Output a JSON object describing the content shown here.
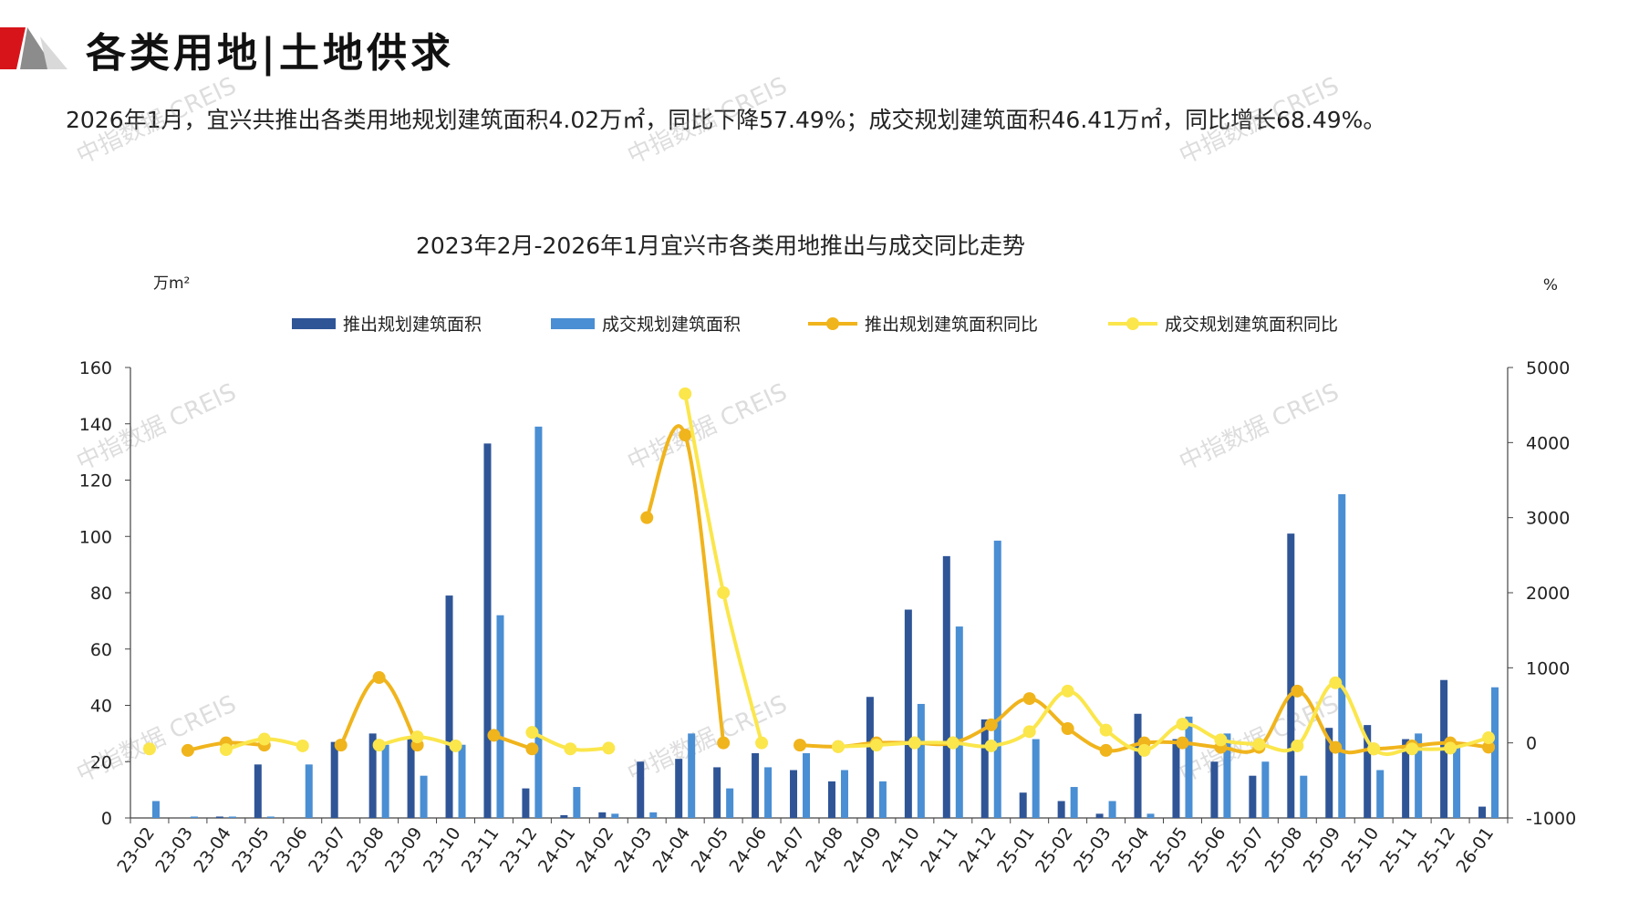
{
  "header": {
    "title": "各类用地|土地供求",
    "brand_color": "#d7141a"
  },
  "summary": "2026年1月，宜兴共推出各类用地规划建筑面积4.02万㎡，同比下降57.49%；成交规划建筑面积46.41万㎡，同比增长68.49%。",
  "watermark_text": "中指数据 CREIS",
  "chart_data": {
    "type": "bar",
    "title": "2023年2月-2026年1月宜兴市各类用地推出与成交同比走势",
    "y_left_unit": "万m²",
    "y_right_unit": "%",
    "ylim_left": [
      0,
      160
    ],
    "ylim_right": [
      -1000,
      5000
    ],
    "yticks_left": [
      0,
      20,
      40,
      60,
      80,
      100,
      120,
      140,
      160
    ],
    "yticks_right": [
      -1000,
      0,
      1000,
      2000,
      3000,
      4000,
      5000
    ],
    "grid": false,
    "legend_position": "top",
    "categories": [
      "23-02",
      "23-03",
      "23-04",
      "23-05",
      "23-06",
      "23-07",
      "23-08",
      "23-09",
      "23-10",
      "23-11",
      "23-12",
      "24-01",
      "24-02",
      "24-03",
      "24-04",
      "24-05",
      "24-06",
      "24-07",
      "24-08",
      "24-09",
      "24-10",
      "24-11",
      "24-12",
      "25-01",
      "25-02",
      "25-03",
      "25-04",
      "25-05",
      "25-06",
      "25-07",
      "25-08",
      "25-09",
      "25-10",
      "25-11",
      "25-12",
      "26-01"
    ],
    "series": [
      {
        "name": "推出规划建筑面积",
        "type": "bar",
        "axis": "left",
        "color": "#2f5597",
        "values": [
          0,
          0,
          0.5,
          19,
          0,
          27,
          30,
          29,
          79,
          133,
          10.5,
          1,
          2,
          20,
          21,
          18,
          23,
          17,
          13,
          43,
          74,
          93,
          35,
          9,
          6,
          1.5,
          37,
          28,
          20,
          15,
          101,
          32,
          33,
          28,
          49,
          4.02
        ]
      },
      {
        "name": "成交规划建筑面积",
        "type": "bar",
        "axis": "left",
        "color": "#4a8ed3",
        "values": [
          6,
          0.5,
          0.5,
          0.5,
          19,
          0,
          26,
          15,
          26,
          72,
          139,
          11,
          1.5,
          2,
          30,
          10.5,
          18,
          23,
          17,
          13,
          40.5,
          68,
          98.5,
          28,
          11,
          6,
          1.5,
          36,
          30,
          20,
          15,
          115,
          17,
          30,
          26,
          46.41
        ]
      },
      {
        "name": "推出规划建筑面积同比",
        "type": "line",
        "axis": "right",
        "color": "#f0b41c",
        "values": [
          null,
          -100,
          0,
          -30,
          null,
          -30,
          870,
          -30,
          null,
          100,
          -80,
          null,
          null,
          3000,
          4100,
          0,
          null,
          -30,
          -50,
          0,
          0,
          0,
          240,
          590,
          190,
          -100,
          0,
          0,
          -60,
          -60,
          690,
          -60,
          -80,
          -40,
          0,
          -57.49
        ]
      },
      {
        "name": "成交规划建筑面积同比",
        "type": "line",
        "axis": "right",
        "color": "#fbe64c",
        "values": [
          -80,
          null,
          -90,
          50,
          -40,
          null,
          -30,
          80,
          -40,
          null,
          140,
          -80,
          -70,
          null,
          4650,
          2000,
          0,
          null,
          -50,
          -30,
          0,
          0,
          -40,
          150,
          690,
          170,
          -100,
          250,
          40,
          -20,
          -40,
          800,
          -80,
          -80,
          -70,
          68.49
        ]
      }
    ]
  }
}
